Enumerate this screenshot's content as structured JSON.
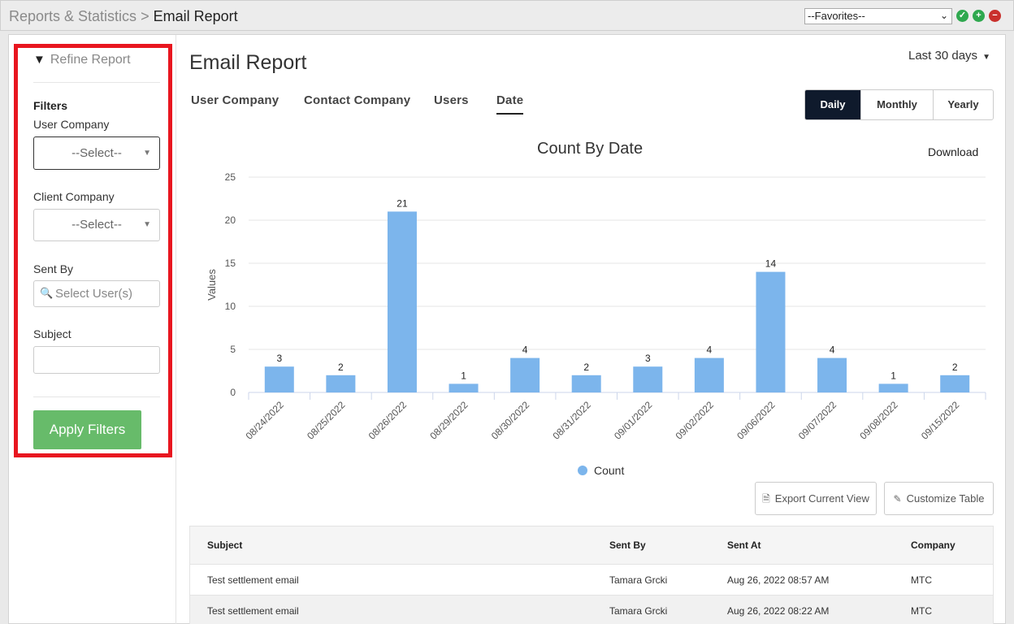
{
  "breadcrumb": {
    "parent": "Reports & Statistics",
    "separator": ">",
    "current": "Email Report"
  },
  "favorites": {
    "selected": "--Favorites--"
  },
  "sidebar": {
    "title": "Refine Report",
    "filters_heading": "Filters",
    "user_company": {
      "label": "User Company",
      "value": "--Select--"
    },
    "client_company": {
      "label": "Client Company",
      "value": "--Select--"
    },
    "sent_by": {
      "label": "Sent By",
      "placeholder": "Select User(s)"
    },
    "subject": {
      "label": "Subject",
      "value": ""
    },
    "apply_label": "Apply Filters"
  },
  "main": {
    "title": "Email Report",
    "period": "Last 30 days",
    "tabs": [
      {
        "label": "User Company"
      },
      {
        "label": "Contact Company"
      },
      {
        "label": "Users"
      },
      {
        "label": "Date",
        "active": true
      }
    ],
    "granularity": [
      "Daily",
      "Monthly",
      "Yearly"
    ],
    "granularity_selected": "Daily",
    "download_label": "Download",
    "export_label": "Export Current View",
    "customize_label": "Customize Table"
  },
  "chart_data": {
    "type": "bar",
    "title": "Count By Date",
    "ylabel": "Values",
    "xlabel": "",
    "ylim": [
      0,
      25
    ],
    "yticks": [
      0,
      5,
      10,
      15,
      20,
      25
    ],
    "categories": [
      "08/24/2022",
      "08/25/2022",
      "08/26/2022",
      "08/29/2022",
      "08/30/2022",
      "08/31/2022",
      "09/01/2022",
      "09/02/2022",
      "09/06/2022",
      "09/07/2022",
      "09/08/2022",
      "09/15/2022"
    ],
    "series": [
      {
        "name": "Count",
        "values": [
          3,
          2,
          21,
          1,
          4,
          2,
          3,
          4,
          14,
          4,
          1,
          2
        ],
        "color": "#7cb5ec"
      }
    ],
    "legend": "bottom",
    "grid": true
  },
  "table": {
    "headers": [
      "Subject",
      "Sent By",
      "Sent At",
      "Company"
    ],
    "rows": [
      [
        "Test settlement email",
        "Tamara Grcki",
        "Aug 26, 2022 08:57 AM",
        "MTC"
      ],
      [
        "Test settlement email",
        "Tamara Grcki",
        "Aug 26, 2022 08:22 AM",
        "MTC"
      ]
    ]
  },
  "colors": {
    "highlight": "#e8161f",
    "apply": "#67bb6a",
    "segment_active": "#0f1a2c",
    "bar": "#7cb5ec"
  }
}
